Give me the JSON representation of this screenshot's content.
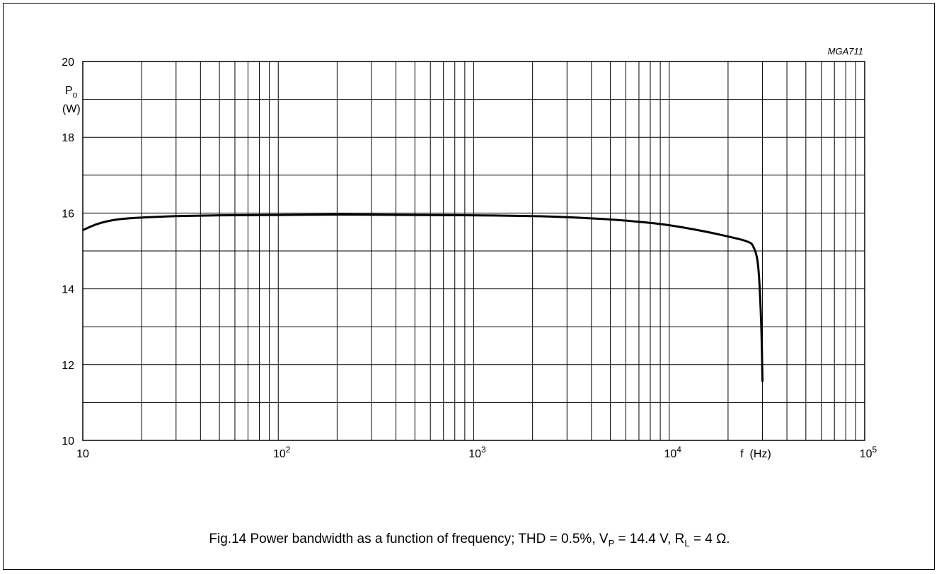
{
  "chart_data": {
    "type": "line",
    "title": "",
    "code": "MGA711",
    "xscale": "log",
    "xlim": [
      10,
      100000
    ],
    "ylim": [
      10,
      20
    ],
    "grid": true,
    "ylabel": {
      "symbol": "P",
      "sub": "o",
      "unit": "(W)"
    },
    "xlabel": "f  (Hz)",
    "xticks": [
      {
        "value": 10,
        "base": "10",
        "exp": ""
      },
      {
        "value": 100,
        "base": "10",
        "exp": "2"
      },
      {
        "value": 1000,
        "base": "10",
        "exp": "3"
      },
      {
        "value": 10000,
        "base": "10",
        "exp": "4"
      },
      {
        "value": 100000,
        "base": "10",
        "exp": "5"
      }
    ],
    "yticks": [
      "10",
      "12",
      "14",
      "16",
      "18",
      "20"
    ],
    "series": [
      {
        "name": "",
        "x": [
          10,
          12,
          15,
          20,
          30,
          50,
          100,
          200,
          500,
          1000,
          2000,
          3000,
          5000,
          7000,
          10000,
          15000,
          20000,
          25000,
          27000,
          28500,
          29500,
          30000
        ],
        "y": [
          15.55,
          15.72,
          15.83,
          15.88,
          15.92,
          15.94,
          15.95,
          15.96,
          15.95,
          15.94,
          15.92,
          15.89,
          15.83,
          15.77,
          15.68,
          15.52,
          15.38,
          15.25,
          15.1,
          14.6,
          13.2,
          11.55
        ]
      }
    ]
  },
  "caption": {
    "prefix": "Fig.14  Power bandwidth as a function of frequency; THD = 0.5%, V",
    "vp_sub": "P",
    "middle": " = 14.4 V, R",
    "rl_sub": "L",
    "suffix": " = 4 Ω."
  }
}
